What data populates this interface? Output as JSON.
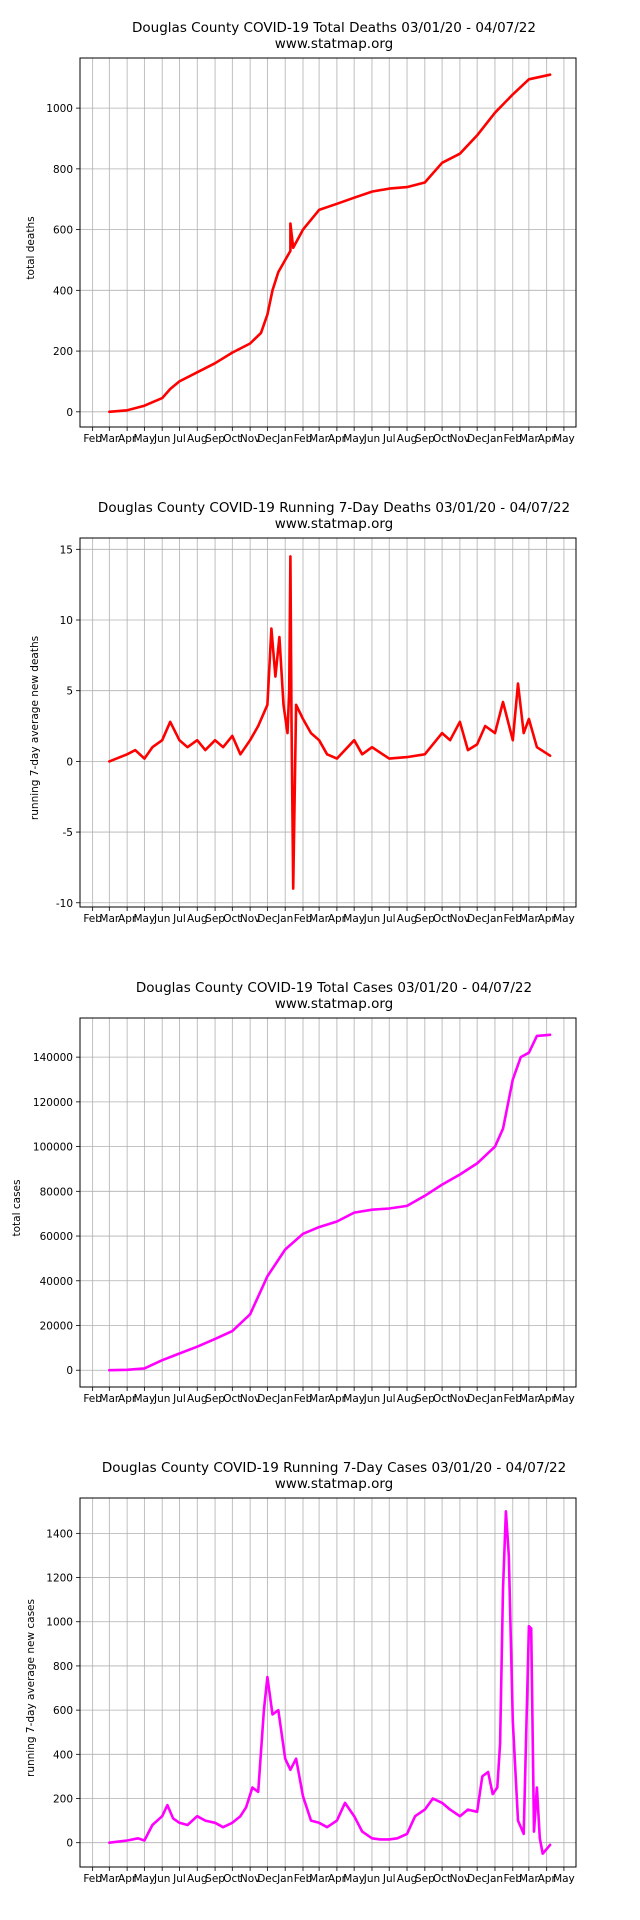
{
  "chart_data": [
    {
      "type": "line",
      "title": "Douglas County COVID-19 Total Deaths 03/01/20 - 04/07/22",
      "subtitle": "www.statmap.org",
      "xlabel": "",
      "ylabel": "total deaths",
      "color": "#ff0000",
      "grid": true,
      "x_tick_labels": [
        "Feb",
        "Mar",
        "Apr",
        "May",
        "Jun",
        "Jul",
        "Aug",
        "Sep",
        "Oct",
        "Nov",
        "Dec",
        "Jan",
        "Feb",
        "Mar",
        "Apr",
        "May",
        "Jun",
        "Jul",
        "Aug",
        "Sep",
        "Oct",
        "Nov",
        "Dec",
        "Jan",
        "Feb",
        "Mar",
        "Apr",
        "May"
      ],
      "y_ticks": [
        0,
        200,
        400,
        600,
        800,
        1000
      ],
      "ylim": [
        -50,
        1165
      ],
      "x": [
        "2020-03-01",
        "2020-04-01",
        "2020-05-01",
        "2020-06-01",
        "2020-06-15",
        "2020-07-01",
        "2020-08-01",
        "2020-09-01",
        "2020-10-01",
        "2020-11-01",
        "2020-11-20",
        "2020-12-01",
        "2020-12-10",
        "2020-12-20",
        "2021-01-01",
        "2021-01-10",
        "2021-01-10",
        "2021-01-15",
        "2021-02-01",
        "2021-03-01",
        "2021-04-01",
        "2021-05-01",
        "2021-06-01",
        "2021-07-01",
        "2021-08-01",
        "2021-09-01",
        "2021-10-01",
        "2021-11-01",
        "2021-12-01",
        "2022-01-01",
        "2022-02-01",
        "2022-03-01",
        "2022-04-07"
      ],
      "series": [
        {
          "name": "",
          "values": [
            0,
            5,
            20,
            45,
            75,
            100,
            130,
            160,
            195,
            225,
            260,
            320,
            400,
            460,
            500,
            530,
            620,
            540,
            600,
            665,
            685,
            705,
            725,
            735,
            740,
            755,
            820,
            850,
            910,
            985,
            1045,
            1095,
            1110
          ]
        }
      ]
    },
    {
      "type": "line",
      "title": "Douglas County COVID-19 Running 7-Day Deaths 03/01/20 - 04/07/22",
      "subtitle": "www.statmap.org",
      "xlabel": "",
      "ylabel": "running 7-day average new deaths",
      "color": "#ff0000",
      "grid": true,
      "x_tick_labels": [
        "Feb",
        "Mar",
        "Apr",
        "May",
        "Jun",
        "Jul",
        "Aug",
        "Sep",
        "Oct",
        "Nov",
        "Dec",
        "Jan",
        "Feb",
        "Mar",
        "Apr",
        "May",
        "Jun",
        "Jul",
        "Aug",
        "Sep",
        "Oct",
        "Nov",
        "Dec",
        "Jan",
        "Feb",
        "Mar",
        "Apr",
        "May"
      ],
      "y_ticks": [
        -10,
        -5,
        0,
        5,
        10,
        15
      ],
      "ylim": [
        -10.3,
        15.8
      ],
      "x": [
        "2020-03-01",
        "2020-04-01",
        "2020-04-15",
        "2020-05-01",
        "2020-05-15",
        "2020-06-01",
        "2020-06-15",
        "2020-07-01",
        "2020-07-15",
        "2020-08-01",
        "2020-08-15",
        "2020-09-01",
        "2020-09-15",
        "2020-10-01",
        "2020-10-15",
        "2020-11-01",
        "2020-11-15",
        "2020-12-01",
        "2020-12-08",
        "2020-12-15",
        "2020-12-22",
        "2020-12-29",
        "2021-01-05",
        "2021-01-08",
        "2021-01-10",
        "2021-01-12",
        "2021-01-15",
        "2021-01-20",
        "2021-02-01",
        "2021-02-15",
        "2021-03-01",
        "2021-03-15",
        "2021-04-01",
        "2021-05-01",
        "2021-05-15",
        "2021-06-01",
        "2021-07-01",
        "2021-08-01",
        "2021-09-01",
        "2021-10-01",
        "2021-10-15",
        "2021-11-01",
        "2021-11-15",
        "2021-12-01",
        "2021-12-15",
        "2022-01-01",
        "2022-01-15",
        "2022-02-01",
        "2022-02-10",
        "2022-02-20",
        "2022-03-01",
        "2022-03-15",
        "2022-04-07"
      ],
      "series": [
        {
          "name": "",
          "values": [
            0,
            0.5,
            0.8,
            0.2,
            1.0,
            1.5,
            2.8,
            1.5,
            1.0,
            1.5,
            0.8,
            1.5,
            1.0,
            1.8,
            0.5,
            1.5,
            2.5,
            4.0,
            9.4,
            6.0,
            8.8,
            4.0,
            2.0,
            5.0,
            14.5,
            3.0,
            -9.0,
            4.0,
            3.0,
            2.0,
            1.5,
            0.5,
            0.2,
            1.5,
            0.5,
            1.0,
            0.2,
            0.3,
            0.5,
            2.0,
            1.5,
            2.8,
            0.8,
            1.2,
            2.5,
            2.0,
            4.2,
            1.5,
            5.5,
            2.0,
            3.0,
            1.0,
            0.4
          ]
        }
      ]
    },
    {
      "type": "line",
      "title": "Douglas County COVID-19 Total Cases 03/01/20 - 04/07/22",
      "subtitle": "www.statmap.org",
      "xlabel": "",
      "ylabel": "total cases",
      "color": "#ff00ff",
      "grid": true,
      "x_tick_labels": [
        "Feb",
        "Mar",
        "Apr",
        "May",
        "Jun",
        "Jul",
        "Aug",
        "Sep",
        "Oct",
        "Nov",
        "Dec",
        "Jan",
        "Feb",
        "Mar",
        "Apr",
        "May",
        "Jun",
        "Jul",
        "Aug",
        "Sep",
        "Oct",
        "Nov",
        "Dec",
        "Jan",
        "Feb",
        "Mar",
        "Apr",
        "May"
      ],
      "y_ticks": [
        0,
        20000,
        40000,
        60000,
        80000,
        100000,
        120000,
        140000
      ],
      "ylim": [
        -7500,
        157500
      ],
      "x": [
        "2020-03-01",
        "2020-04-01",
        "2020-05-01",
        "2020-06-01",
        "2020-07-01",
        "2020-08-01",
        "2020-09-01",
        "2020-10-01",
        "2020-11-01",
        "2020-12-01",
        "2021-01-01",
        "2021-02-01",
        "2021-03-01",
        "2021-04-01",
        "2021-05-01",
        "2021-06-01",
        "2021-07-01",
        "2021-08-01",
        "2021-09-01",
        "2021-10-01",
        "2021-11-01",
        "2021-12-01",
        "2022-01-01",
        "2022-01-15",
        "2022-02-01",
        "2022-02-15",
        "2022-03-01",
        "2022-03-15",
        "2022-04-07"
      ],
      "series": [
        {
          "name": "",
          "values": [
            0,
            200,
            800,
            4500,
            7500,
            10500,
            14000,
            17500,
            25000,
            42000,
            54000,
            61000,
            64000,
            66500,
            70500,
            71800,
            72300,
            73500,
            78000,
            83000,
            87500,
            92500,
            100000,
            108000,
            130000,
            140000,
            142000,
            149500,
            150000
          ]
        }
      ]
    },
    {
      "type": "line",
      "title": "Douglas County COVID-19 Running 7-Day Cases 03/01/20 - 04/07/22",
      "subtitle": "www.statmap.org",
      "xlabel": "",
      "ylabel": "running 7-day average new cases",
      "color": "#ff00ff",
      "grid": true,
      "x_tick_labels": [
        "Feb",
        "Mar",
        "Apr",
        "May",
        "Jun",
        "Jul",
        "Aug",
        "Sep",
        "Oct",
        "Nov",
        "Dec",
        "Jan",
        "Feb",
        "Mar",
        "Apr",
        "May",
        "Jun",
        "Jul",
        "Aug",
        "Sep",
        "Oct",
        "Nov",
        "Dec",
        "Jan",
        "Feb",
        "Mar",
        "Apr",
        "May"
      ],
      "y_ticks": [
        0,
        200,
        400,
        600,
        800,
        1000,
        1200,
        1400
      ],
      "ylim": [
        -110,
        1560
      ],
      "x": [
        "2020-03-01",
        "2020-04-01",
        "2020-04-20",
        "2020-05-01",
        "2020-05-15",
        "2020-06-01",
        "2020-06-10",
        "2020-06-20",
        "2020-07-01",
        "2020-07-15",
        "2020-08-01",
        "2020-08-15",
        "2020-09-01",
        "2020-09-15",
        "2020-10-01",
        "2020-10-15",
        "2020-10-25",
        "2020-11-05",
        "2020-11-15",
        "2020-11-25",
        "2020-12-01",
        "2020-12-10",
        "2020-12-20",
        "2021-01-01",
        "2021-01-10",
        "2021-01-20",
        "2021-02-01",
        "2021-02-15",
        "2021-03-01",
        "2021-03-15",
        "2021-04-01",
        "2021-04-15",
        "2021-05-01",
        "2021-05-15",
        "2021-06-01",
        "2021-06-15",
        "2021-07-01",
        "2021-07-15",
        "2021-08-01",
        "2021-08-15",
        "2021-09-01",
        "2021-09-15",
        "2021-10-01",
        "2021-10-15",
        "2021-11-01",
        "2021-11-15",
        "2021-12-01",
        "2021-12-10",
        "2021-12-20",
        "2021-12-28",
        "2022-01-05",
        "2022-01-10",
        "2022-01-15",
        "2022-01-20",
        "2022-01-25",
        "2022-02-01",
        "2022-02-10",
        "2022-02-20",
        "2022-03-01",
        "2022-03-05",
        "2022-03-10",
        "2022-03-15",
        "2022-03-20",
        "2022-03-25",
        "2022-04-07"
      ],
      "series": [
        {
          "name": "",
          "values": [
            0,
            10,
            20,
            10,
            80,
            120,
            170,
            110,
            90,
            80,
            120,
            100,
            90,
            70,
            90,
            120,
            160,
            250,
            230,
            600,
            750,
            580,
            600,
            380,
            330,
            380,
            210,
            100,
            90,
            70,
            100,
            180,
            120,
            50,
            20,
            15,
            15,
            20,
            40,
            120,
            150,
            200,
            180,
            150,
            120,
            150,
            140,
            300,
            320,
            220,
            250,
            450,
            1150,
            1500,
            1300,
            550,
            100,
            40,
            980,
            970,
            50,
            250,
            20,
            -50,
            -10
          ]
        }
      ]
    }
  ]
}
